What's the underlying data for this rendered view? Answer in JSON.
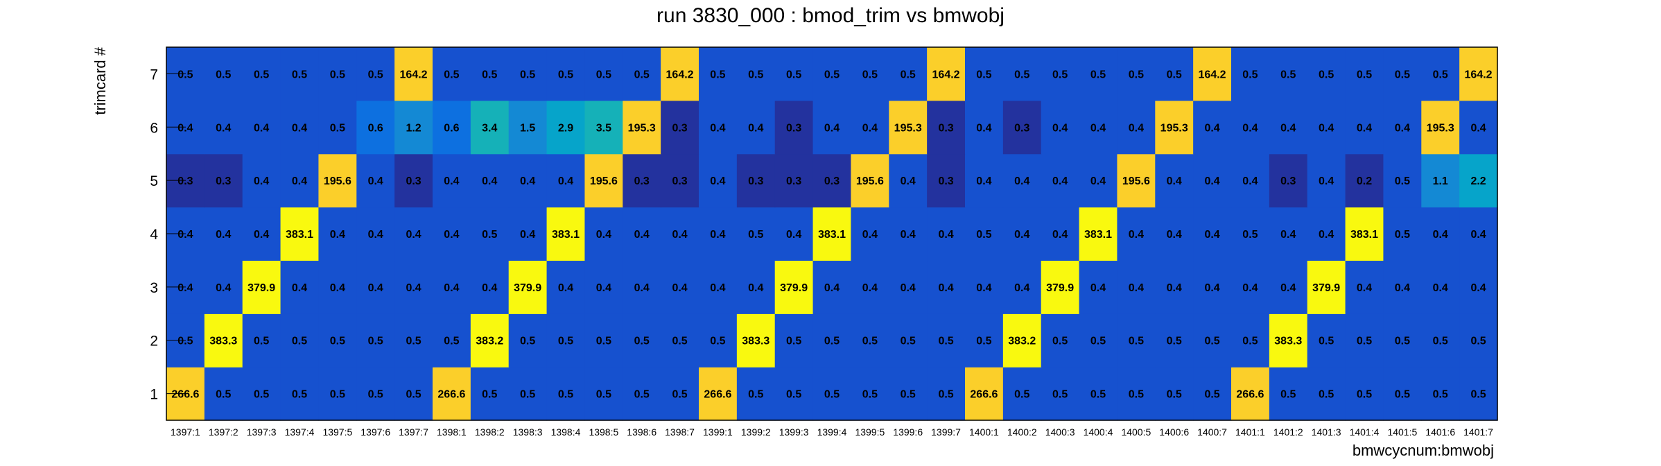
{
  "chart_data": {
    "type": "heatmap",
    "title": "run 3830_000 : bmod_trim vs bmwobj",
    "xlabel": "bmwcycnum:bmwobj",
    "ylabel": "trimcard #",
    "x_categories": [
      "1397:1",
      "1397:2",
      "1397:3",
      "1397:4",
      "1397:5",
      "1397:6",
      "1397:7",
      "1398:1",
      "1398:2",
      "1398:3",
      "1398:4",
      "1398:5",
      "1398:6",
      "1398:7",
      "1399:1",
      "1399:2",
      "1399:3",
      "1399:4",
      "1399:5",
      "1399:6",
      "1399:7",
      "1400:1",
      "1400:2",
      "1400:3",
      "1400:4",
      "1400:5",
      "1400:6",
      "1400:7",
      "1401:1",
      "1401:2",
      "1401:3",
      "1401:4",
      "1401:5",
      "1401:6",
      "1401:7"
    ],
    "y_categories": [
      "1",
      "2",
      "3",
      "4",
      "5",
      "6",
      "7"
    ],
    "values": [
      [
        "266.6",
        "0.5",
        "0.5",
        "0.5",
        "0.5",
        "0.5",
        "0.5",
        "266.6",
        "0.5",
        "0.5",
        "0.5",
        "0.5",
        "0.5",
        "0.5",
        "266.6",
        "0.5",
        "0.5",
        "0.5",
        "0.5",
        "0.5",
        "0.5",
        "266.6",
        "0.5",
        "0.5",
        "0.5",
        "0.5",
        "0.5",
        "0.5",
        "266.6",
        "0.5",
        "0.5",
        "0.5",
        "0.5",
        "0.5",
        "0.5"
      ],
      [
        "0.5",
        "383.3",
        "0.5",
        "0.5",
        "0.5",
        "0.5",
        "0.5",
        "0.5",
        "383.2",
        "0.5",
        "0.5",
        "0.5",
        "0.5",
        "0.5",
        "0.5",
        "383.3",
        "0.5",
        "0.5",
        "0.5",
        "0.5",
        "0.5",
        "0.5",
        "383.2",
        "0.5",
        "0.5",
        "0.5",
        "0.5",
        "0.5",
        "0.5",
        "383.3",
        "0.5",
        "0.5",
        "0.5",
        "0.5",
        "0.5"
      ],
      [
        "0.4",
        "0.4",
        "379.9",
        "0.4",
        "0.4",
        "0.4",
        "0.4",
        "0.4",
        "0.4",
        "379.9",
        "0.4",
        "0.4",
        "0.4",
        "0.4",
        "0.4",
        "0.4",
        "379.9",
        "0.4",
        "0.4",
        "0.4",
        "0.4",
        "0.4",
        "0.4",
        "379.9",
        "0.4",
        "0.4",
        "0.4",
        "0.4",
        "0.4",
        "0.4",
        "379.9",
        "0.4",
        "0.4",
        "0.4",
        "0.4"
      ],
      [
        "0.4",
        "0.4",
        "0.4",
        "383.1",
        "0.4",
        "0.4",
        "0.4",
        "0.4",
        "0.5",
        "0.4",
        "383.1",
        "0.4",
        "0.4",
        "0.4",
        "0.4",
        "0.5",
        "0.4",
        "383.1",
        "0.4",
        "0.4",
        "0.4",
        "0.5",
        "0.4",
        "0.4",
        "383.1",
        "0.4",
        "0.4",
        "0.4",
        "0.5",
        "0.4",
        "0.4",
        "383.1",
        "0.5",
        "0.4",
        "0.4"
      ],
      [
        "0.3",
        "0.3",
        "0.4",
        "0.4",
        "195.6",
        "0.4",
        "0.3",
        "0.4",
        "0.4",
        "0.4",
        "0.4",
        "195.6",
        "0.3",
        "0.3",
        "0.4",
        "0.3",
        "0.3",
        "0.3",
        "195.6",
        "0.4",
        "0.3",
        "0.4",
        "0.4",
        "0.4",
        "0.4",
        "195.6",
        "0.4",
        "0.4",
        "0.4",
        "0.3",
        "0.4",
        "0.2",
        "0.5",
        "1.1",
        "2.2"
      ],
      [
        "0.4",
        "0.4",
        "0.4",
        "0.4",
        "0.5",
        "0.6",
        "1.2",
        "0.6",
        "3.4",
        "1.5",
        "2.9",
        "3.5",
        "195.3",
        "0.3",
        "0.4",
        "0.4",
        "0.3",
        "0.4",
        "0.4",
        "195.3",
        "0.3",
        "0.4",
        "0.3",
        "0.4",
        "0.4",
        "0.4",
        "195.3",
        "0.4",
        "0.4",
        "0.4",
        "0.4",
        "0.4",
        "0.4",
        "195.3",
        "0.4"
      ],
      [
        "0.5",
        "0.5",
        "0.5",
        "0.5",
        "0.5",
        "0.5",
        "164.2",
        "0.5",
        "0.5",
        "0.5",
        "0.5",
        "0.5",
        "0.5",
        "164.2",
        "0.5",
        "0.5",
        "0.5",
        "0.5",
        "0.5",
        "0.5",
        "164.2",
        "0.5",
        "0.5",
        "0.5",
        "0.5",
        "0.5",
        "0.5",
        "164.2",
        "0.5",
        "0.5",
        "0.5",
        "0.5",
        "0.5",
        "0.5",
        "164.2"
      ]
    ],
    "colors": {
      "deep": "#23329e",
      "base": "#1651cf",
      "mid_low": "#0d70e0",
      "mid": "#1489d4",
      "teal": "#06a4ca",
      "teal_high": "#15b1b8",
      "orange": "#fbcf2a",
      "yellow": "#f9f90f"
    },
    "grid": false,
    "legend": "none"
  }
}
